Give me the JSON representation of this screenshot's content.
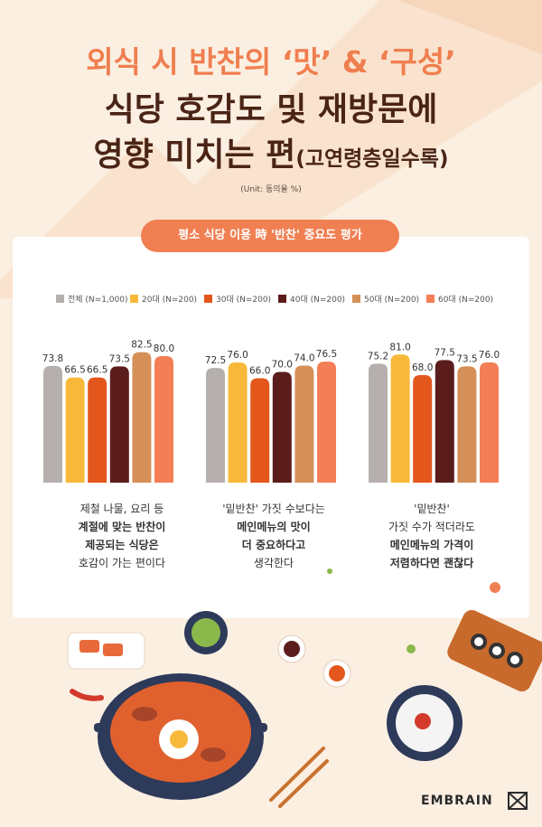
{
  "title": {
    "line1": "외식 시 반찬의 ‘맛’ & ‘구성’",
    "line2": "식당 호감도 및 재방문에",
    "line3_main": "영향 미치는 편",
    "line3_sub": "(고연령층일수록)"
  },
  "unit": "(Unit: 동의율 %)",
  "section_label": "평소 식당 이용 時 '반찬' 중요도 평가",
  "brand": "EMBRAIN",
  "colors": {
    "background": "#fbefe2",
    "accent": "#f07f52",
    "title_dark": "#4a2416"
  },
  "icons": [
    "bowl-icon",
    "rice-bowl-icon",
    "gimbap-board-icon",
    "chopsticks-icon",
    "chili-pepper-icon",
    "sauce-dish-icon",
    "embrain-logo-icon"
  ],
  "chart_data": {
    "type": "bar",
    "ylim": [
      0,
      100
    ],
    "series": [
      {
        "name": "전체 (N=1,000)",
        "color": "#b5b0ad",
        "values": [
          73.8,
          72.5,
          75.2
        ]
      },
      {
        "name": "20대 (N=200)",
        "color": "#f8b93a",
        "values": [
          66.5,
          76.0,
          81.0
        ]
      },
      {
        "name": "30대 (N=200)",
        "color": "#e3571d",
        "values": [
          66.5,
          66.0,
          68.0
        ]
      },
      {
        "name": "40대 (N=200)",
        "color": "#5b1d1c",
        "values": [
          73.5,
          70.0,
          77.5
        ]
      },
      {
        "name": "50대 (N=200)",
        "color": "#d59058",
        "values": [
          82.5,
          74.0,
          73.5
        ]
      },
      {
        "name": "60대 (N=200)",
        "color": "#f47e55",
        "values": [
          80.0,
          76.5,
          76.0
        ]
      }
    ],
    "value_labels": [
      [
        "73.8",
        "66.5",
        "66.5",
        "73.5",
        "82.5",
        "80.0"
      ],
      [
        "72.5",
        "76.0",
        "66.0",
        "70.0",
        "74.0",
        "76.5"
      ],
      [
        "75.2",
        "81.0",
        "68.0",
        "77.5",
        "73.5",
        "76.0"
      ]
    ],
    "categories": [
      {
        "lines": [
          {
            "text": "제철 나물, 요리 등",
            "bold": false
          },
          {
            "text": "계절에 맞는 반찬이",
            "bold": true
          },
          {
            "text": "제공되는 식당은",
            "bold": true
          },
          {
            "text": "호감이 가는 편이다",
            "bold": false
          }
        ]
      },
      {
        "lines": [
          {
            "text": "'밑반찬' 가짓 수보다는",
            "bold": false
          },
          {
            "text": "메인메뉴의 맛이",
            "bold": true
          },
          {
            "text": "더 중요하다고",
            "bold": true
          },
          {
            "text": "생각한다",
            "bold": false
          }
        ]
      },
      {
        "lines": [
          {
            "text": "'밑반찬'",
            "bold": false
          },
          {
            "text": "가짓 수가 적더라도",
            "bold": false
          },
          {
            "text": "메인메뉴의 가격이",
            "bold": true
          },
          {
            "text": "저렴하다면 괜찮다",
            "bold": true
          }
        ]
      }
    ]
  }
}
